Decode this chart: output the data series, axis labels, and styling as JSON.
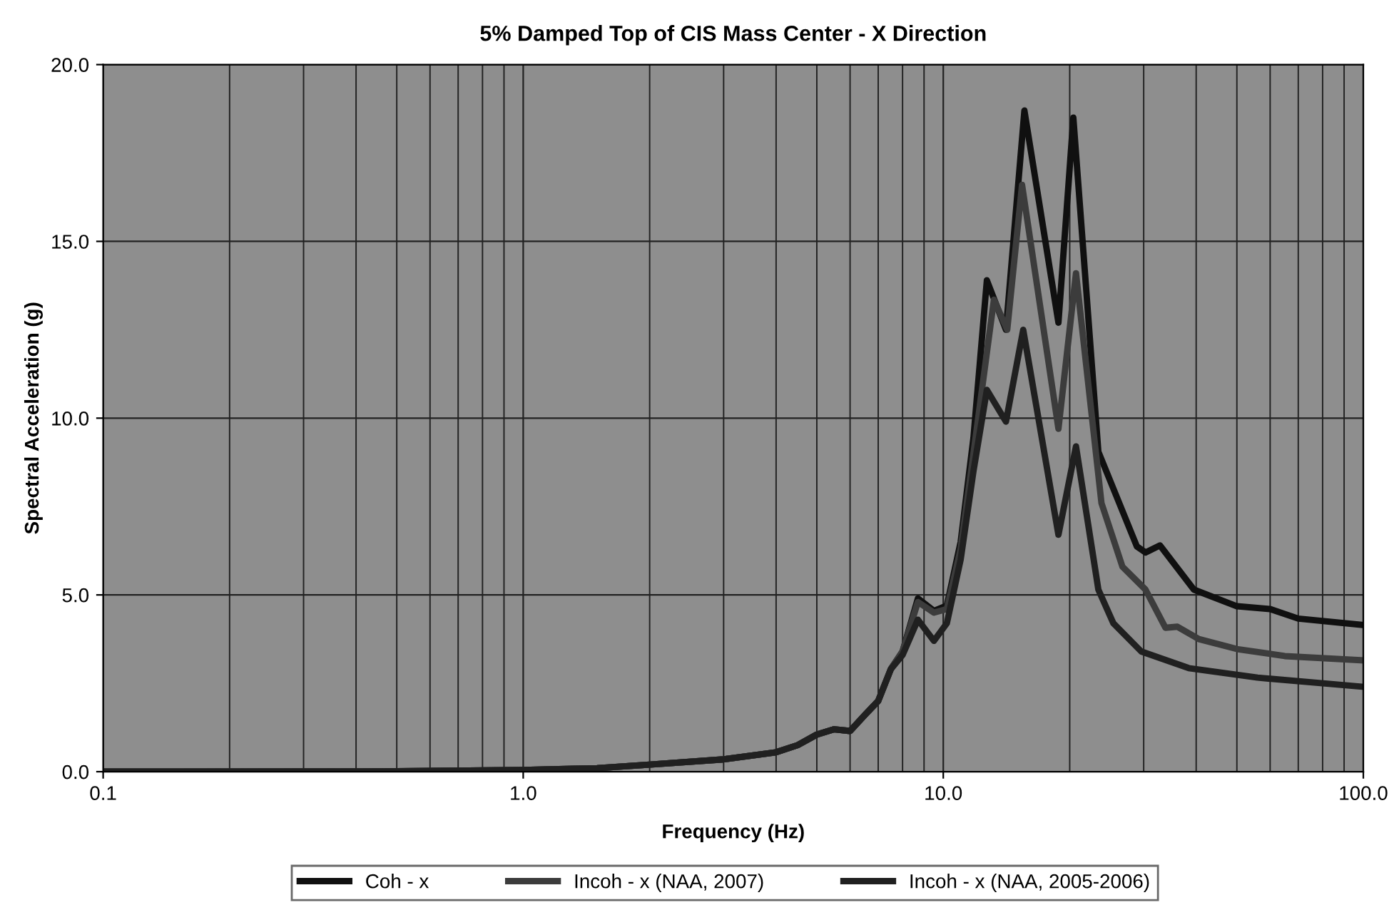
{
  "chart_data": {
    "type": "line",
    "title": "5% Damped Top of CIS Mass Center - X Direction",
    "xlabel": "Frequency (Hz)",
    "ylabel": "Spectral Acceleration (g)",
    "log": "x",
    "xlim": [
      0.1,
      100
    ],
    "xticks": [
      {
        "value": 0.1,
        "label": "0.1"
      },
      {
        "value": 1,
        "label": "1.0"
      },
      {
        "value": 10,
        "label": "10.0"
      },
      {
        "value": 100,
        "label": "100.0"
      }
    ],
    "ylim": [
      0,
      20
    ],
    "yticks": [
      {
        "value": 0,
        "label": "0.0"
      },
      {
        "value": 5,
        "label": "5.0"
      },
      {
        "value": 10,
        "label": "10.0"
      },
      {
        "value": 15,
        "label": "15.0"
      },
      {
        "value": 20,
        "label": "20.0"
      }
    ],
    "grid": true,
    "legend": "bottom",
    "line_style": "solid",
    "marker": "none",
    "series": [
      {
        "name": "Coh - x",
        "color": "#101010",
        "x": [
          0.1,
          0.5,
          1,
          1.5,
          2,
          3,
          4,
          4.5,
          5,
          5.5,
          6,
          6.5,
          7,
          7.5,
          8,
          8.7,
          9.5,
          10.2,
          11,
          11.8,
          12.7,
          14.1,
          15.6,
          18.8,
          20.4,
          23.4,
          28.9,
          30.3,
          32.8,
          39.5,
          50,
          60,
          70,
          100
        ],
        "values": [
          0,
          0.01,
          0.05,
          0.1,
          0.2,
          0.35,
          0.55,
          0.75,
          1.05,
          1.2,
          1.15,
          1.6,
          2.0,
          2.9,
          3.4,
          4.9,
          4.55,
          4.7,
          6.5,
          9.45,
          13.9,
          12.5,
          18.7,
          12.7,
          18.5,
          9.05,
          6.37,
          6.2,
          6.4,
          5.15,
          4.68,
          4.6,
          4.33,
          4.15
        ]
      },
      {
        "name": "Incoh - x (NAA, 2007)",
        "color": "#3c3c3c",
        "x": [
          0.1,
          0.5,
          1,
          1.5,
          2,
          3,
          4,
          4.5,
          5,
          5.5,
          6,
          6.5,
          7,
          7.5,
          8,
          8.7,
          9.5,
          10.2,
          11,
          11.8,
          13.2,
          14.2,
          15.4,
          18.8,
          20.7,
          23.8,
          26.7,
          30.3,
          33.8,
          36.1,
          40.6,
          50,
          65,
          100
        ],
        "values": [
          0,
          0.01,
          0.05,
          0.1,
          0.2,
          0.35,
          0.55,
          0.75,
          1.05,
          1.2,
          1.15,
          1.6,
          2.0,
          2.9,
          3.4,
          4.8,
          4.5,
          4.6,
          6.3,
          9.0,
          13.35,
          12.5,
          16.6,
          9.7,
          14.1,
          7.6,
          5.8,
          5.15,
          4.07,
          4.1,
          3.75,
          3.47,
          3.27,
          3.15
        ]
      },
      {
        "name": "Incoh - x (NAA, 2005-2006)",
        "color": "#202020",
        "x": [
          0.1,
          0.5,
          1,
          1.5,
          2,
          3,
          4,
          4.5,
          5,
          5.5,
          6,
          6.5,
          7,
          7.5,
          8,
          8.7,
          9.5,
          10.2,
          11,
          11.8,
          12.7,
          14.1,
          15.5,
          18.8,
          20.7,
          23.4,
          25.4,
          29.6,
          38.4,
          56,
          100
        ],
        "values": [
          0,
          0.01,
          0.05,
          0.1,
          0.2,
          0.35,
          0.55,
          0.75,
          1.05,
          1.2,
          1.15,
          1.6,
          2.0,
          2.9,
          3.3,
          4.3,
          3.7,
          4.2,
          6.0,
          8.5,
          10.8,
          9.9,
          12.5,
          6.7,
          9.2,
          5.15,
          4.2,
          3.4,
          2.93,
          2.66,
          2.4
        ]
      }
    ]
  }
}
